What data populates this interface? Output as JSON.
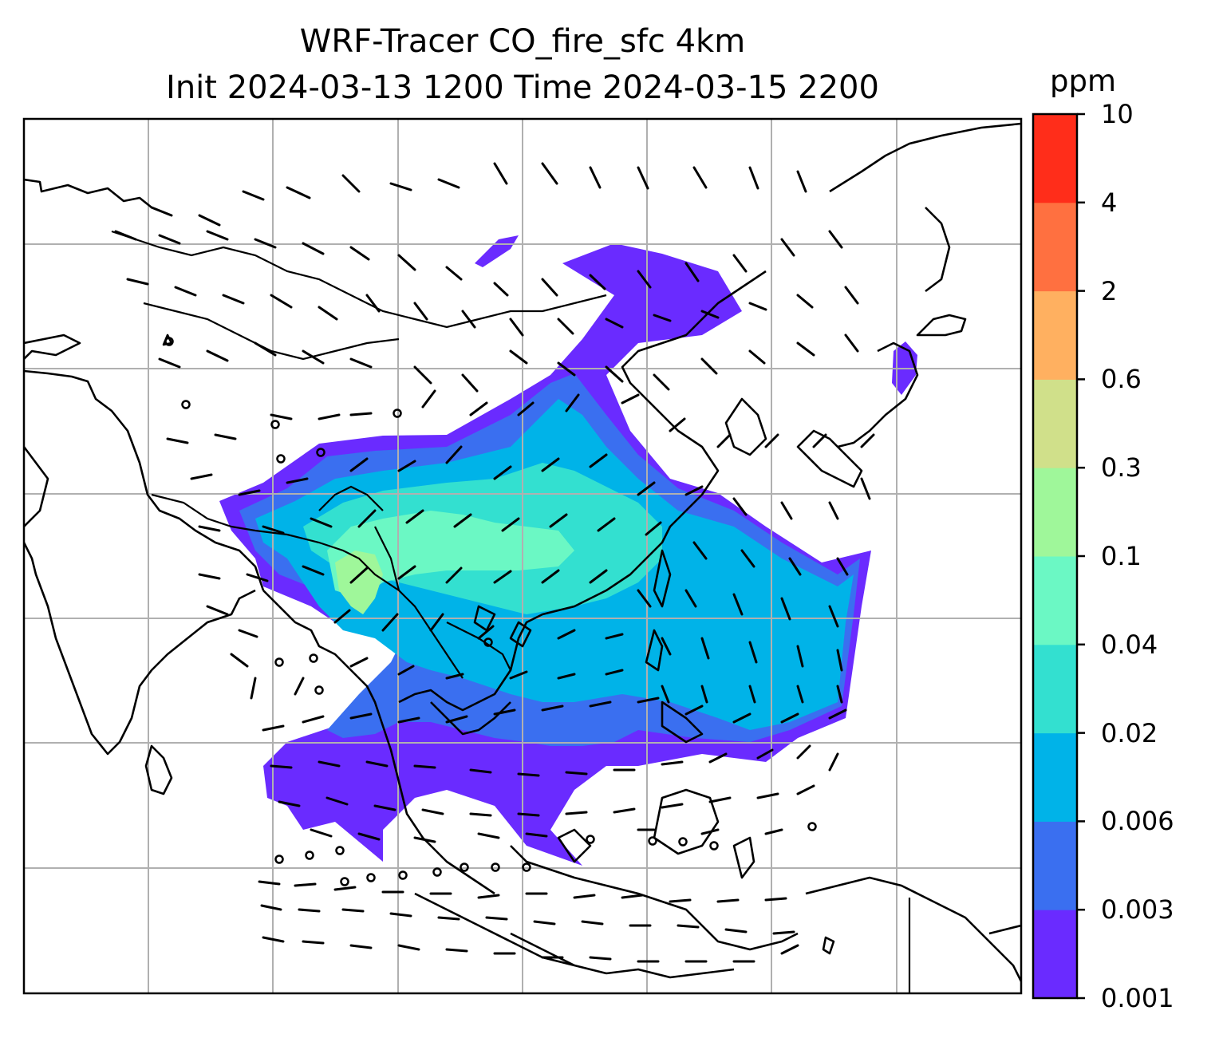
{
  "title": {
    "line1": "WRF-Tracer CO_fire_sfc 4km",
    "line2": "Init 2024-03-13 1200 Time 2024-03-15 2200"
  },
  "colorbar": {
    "unit": "ppm",
    "levels": [
      "0.001",
      "0.003",
      "0.006",
      "0.02",
      "0.04",
      "0.1",
      "0.3",
      "0.6",
      "2",
      "4",
      "10"
    ],
    "colors": [
      "#6a2bff",
      "#3a6ff0",
      "#00b3e8",
      "#33e0d0",
      "#6bf8c4",
      "#9ff79a",
      "#d0e08a",
      "#ffb060",
      "#ff7040",
      "#ff2d1a"
    ]
  },
  "map": {
    "layers": [
      "coastlines",
      "country-borders",
      "gridlines",
      "wind-barbs",
      "co-fire-shading"
    ],
    "grid_color": "#b0b0b0"
  }
}
